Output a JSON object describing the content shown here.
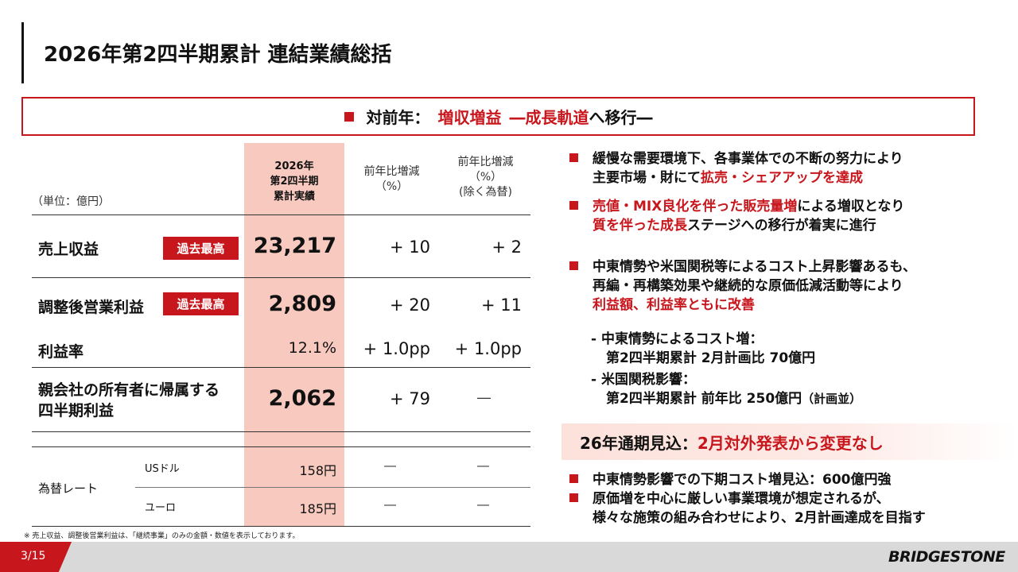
{
  "title": "2026年第2四半期累計 連結業績総括",
  "summary": {
    "prefix": "対前年：",
    "highlight1": "増収増益",
    "mid": "―成長軌道",
    "suffix": "へ移行―"
  },
  "table": {
    "unit": "（単位：億円）",
    "col1": [
      "2026年",
      "第2四半期",
      "累計実績"
    ],
    "col2": [
      "前年比増減",
      "（%）"
    ],
    "col3": [
      "前年比増減",
      "（%）",
      "(除く為替)"
    ],
    "badge": "過去最高",
    "rows": {
      "revenue": {
        "label": "売上収益",
        "value": "23,217",
        "yoy": "+ 10",
        "yoy_ex": "+ 2"
      },
      "op": {
        "label": "調整後営業利益",
        "value": "2,809",
        "yoy": "+ 20",
        "yoy_ex": "+ 11"
      },
      "margin": {
        "label": "利益率",
        "value": "12.1%",
        "yoy": "+ 1.0pp",
        "yoy_ex": "+ 1.0pp"
      },
      "net": {
        "label1": "親会社の所有者に帰属する",
        "label2": "四半期利益",
        "value": "2,062",
        "yoy": "+ 79",
        "yoy_ex": "―"
      }
    },
    "fx": {
      "label": "為替レート",
      "usd_label": "USドル",
      "usd_value": "158円",
      "eur_label": "ユーロ",
      "eur_value": "185円",
      "dash": "―"
    }
  },
  "bullets": {
    "b1_line1": "緩慢な需要環境下、各事業体での不断の努力により",
    "b1_line2_plain": "主要市場・財にて",
    "b1_line2_red": "拡売・シェアアップを達成",
    "b2_line1_red": "売値・MIX良化を伴った販売量増",
    "b2_line1_plain": "による増収となり",
    "b2_line2_red": "質を伴った成長",
    "b2_line2_plain": "ステージへの移行が着実に進行",
    "b3_line1": "中東情勢や米国関税等によるコスト上昇影響あるも、",
    "b3_line2": "再編・再構築効果や継続的な原価低減活動等により",
    "b3_line3_red": "利益額、利益率ともに改善",
    "sub1_line1": "- 中東情勢によるコスト増：",
    "sub1_line2": "第2四半期累計 2月計画比 70億円",
    "sub2_line1": "- 米国関税影響：",
    "sub2_line2": "第2四半期累計 前年比 250億円",
    "sub2_note": "（計画並）"
  },
  "outlook": {
    "prefix": "26年通期見込：",
    "red": "2月対外発表から変更なし"
  },
  "outlook_bullets": {
    "o1": "中東情勢影響での下期コスト増見込：600億円強",
    "o2_line1": "原価増を中心に厳しい事業環境が想定されるが、",
    "o2_line2": "様々な施策の組み合わせにより、2月計画達成を目指す"
  },
  "footnote": "※ 売上収益、調整後営業利益は、「継続事業」のみの金額・数値を表示しております。",
  "page": "3/15",
  "logo": "BRIDGESTONE",
  "colors": {
    "accent": "#c8161d",
    "highlight_column": "#f8c9bf"
  }
}
